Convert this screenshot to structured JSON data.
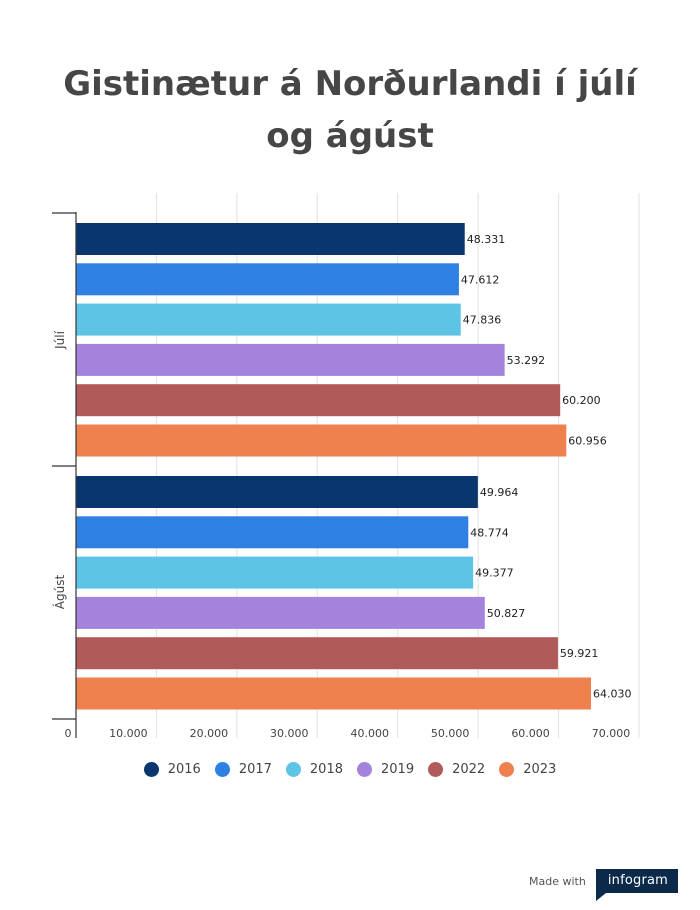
{
  "title": "Gistinætur á Norðurlandi í júlí og ágúst",
  "chart_data": {
    "type": "bar",
    "orientation": "horizontal",
    "title": "Gistinætur á Norðurlandi í júlí og ágúst",
    "categories": [
      "Júlí",
      "Ágúst"
    ],
    "series": [
      {
        "name": "2016",
        "color": "#0a3670",
        "values": [
          48331,
          49964
        ],
        "labels": [
          "48.331",
          "49.964"
        ]
      },
      {
        "name": "2017",
        "color": "#2f80e3",
        "values": [
          47612,
          48774
        ],
        "labels": [
          "47.612",
          "48.774"
        ]
      },
      {
        "name": "2018",
        "color": "#5ec4e6",
        "values": [
          47836,
          49377
        ],
        "labels": [
          "47.836",
          "49.377"
        ]
      },
      {
        "name": "2019",
        "color": "#a483dd",
        "values": [
          53292,
          50827
        ],
        "labels": [
          "53.292",
          "50.827"
        ]
      },
      {
        "name": "2022",
        "color": "#b05a5a",
        "values": [
          60200,
          59921
        ],
        "labels": [
          "60.200",
          "59.921"
        ]
      },
      {
        "name": "2023",
        "color": "#ef814e",
        "values": [
          60956,
          64030
        ],
        "labels": [
          "60.956",
          "64.030"
        ]
      }
    ],
    "xlim": [
      0,
      70000
    ],
    "xticks": [
      0,
      10000,
      20000,
      30000,
      40000,
      50000,
      60000,
      70000
    ],
    "xtick_labels": [
      "0",
      "10.000",
      "20.000",
      "30.000",
      "40.000",
      "50.000",
      "60.000",
      "70.000"
    ],
    "grid": true,
    "legend_position": "bottom"
  },
  "footer": {
    "made_with": "Made with",
    "brand": "infogram"
  }
}
